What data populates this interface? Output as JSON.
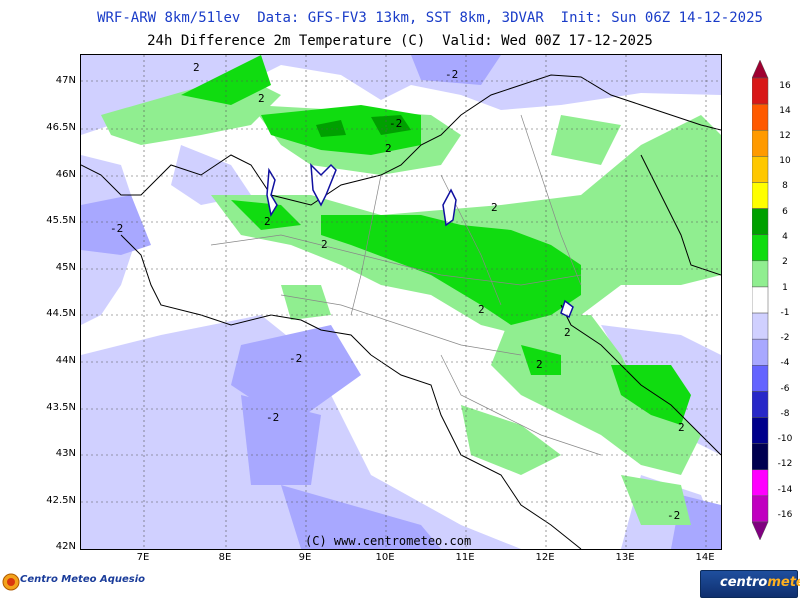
{
  "header": {
    "line1": "WRF-ARW 8km/51lev  Data: GFS-FV3 13km, SST 8km, 3DVAR  Init: Sun 06Z 14-12-2025",
    "line2": "24h Difference 2m Temperature (C)  Valid: Wed 00Z 17-12-2025"
  },
  "map": {
    "lon_range": [
      6.25,
      14.15
    ],
    "lat_range": [
      42.0,
      47.3
    ],
    "lat_ticks": [
      "47N",
      "46.5N",
      "46N",
      "45.5N",
      "45N",
      "44.5N",
      "44N",
      "43.5N",
      "43N",
      "42.5N",
      "42N"
    ],
    "lon_ticks": [
      "7E",
      "8E",
      "9E",
      "10E",
      "11E",
      "12E",
      "13E",
      "14E"
    ],
    "contour_labels": [
      "2",
      "-2",
      "2",
      "2",
      "2",
      "-2",
      "2",
      "2",
      "2",
      "2",
      "-2",
      "2",
      "-2",
      "2",
      "-2",
      "-2"
    ],
    "copyright": "(C) www.centrometeo.com"
  },
  "colorbar": {
    "labels": [
      "16",
      "14",
      "12",
      "10",
      "8",
      "6",
      "4",
      "2",
      "1",
      "-1",
      "-2",
      "-4",
      "-6",
      "-8",
      "-10",
      "-12",
      "-14",
      "-16"
    ],
    "colors": [
      "#9e0030",
      "#d81818",
      "#ff5a00",
      "#ff9a00",
      "#ffc800",
      "#ffff00",
      "#00a000",
      "#10dc10",
      "#90ee90",
      "#ffffff",
      "#d0d0ff",
      "#a8a8ff",
      "#6464ff",
      "#2828c8",
      "#00008c",
      "#000050",
      "#ff00ff",
      "#c000c0",
      "#800080"
    ]
  },
  "logos": {
    "left": "Centro Meteo Aquesio",
    "right_a": "centro",
    "right_b": "meteo"
  }
}
